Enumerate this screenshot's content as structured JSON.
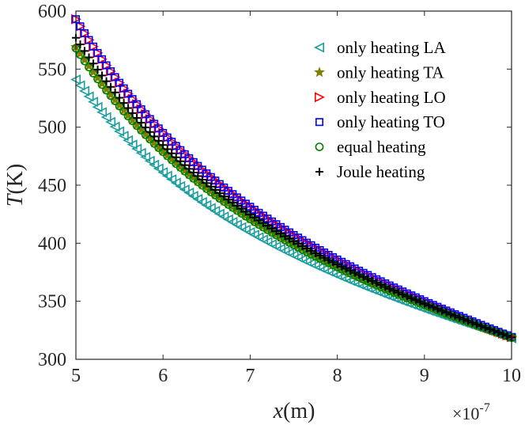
{
  "chart_data": {
    "type": "scatter",
    "title": "",
    "xlabel": "x(m)",
    "ylabel": "T(K)",
    "x_multiplier_label": "×10",
    "x_multiplier_exponent": "-7",
    "xlim": [
      5,
      10
    ],
    "ylim": [
      300,
      600
    ],
    "x_ticks": [
      5,
      6,
      7,
      8,
      9,
      10
    ],
    "y_ticks": [
      300,
      350,
      400,
      450,
      500,
      550,
      600
    ],
    "grid": false,
    "legend_position": "top-right",
    "series": [
      {
        "name": "only heating LA",
        "marker": "triangle-left",
        "color": "#1b9e9e",
        "y_start": 541,
        "decay": 1.35
      },
      {
        "name": "only heating TA",
        "marker": "star",
        "color": "#808000",
        "y_start": 569,
        "decay": 1.55
      },
      {
        "name": "only heating LO",
        "marker": "triangle-right",
        "color": "#ff0000",
        "y_start": 593,
        "decay": 1.75
      },
      {
        "name": "only heating TO",
        "marker": "square",
        "color": "#0000ff",
        "y_start": 593,
        "decay": 1.75
      },
      {
        "name": "equal heating",
        "marker": "circle",
        "color": "#008000",
        "y_start": 568,
        "decay": 1.55
      },
      {
        "name": "Joule heating",
        "marker": "plus",
        "color": "#000000",
        "y_start": 577,
        "decay": 1.6
      }
    ],
    "x_values_start": 5.0,
    "x_values_step": 0.05,
    "x_values_count": 101,
    "y_end": 313
  }
}
